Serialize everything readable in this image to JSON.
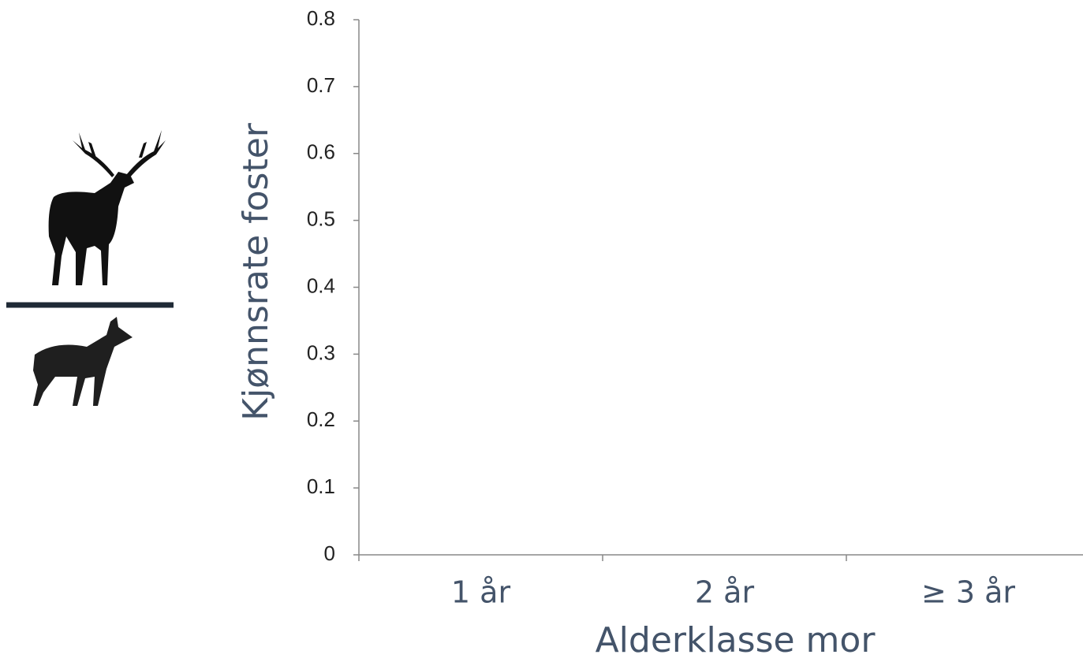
{
  "chart_data": {
    "type": "bar",
    "categories": [
      "1 år",
      "2 år",
      "≥ 3 år"
    ],
    "x_label": "Alderklasse mor",
    "y_label": "Kjønnsrate foster",
    "ylim": [
      0,
      0.8
    ],
    "yticks": [
      0,
      0.1,
      0.2,
      0.3,
      0.4,
      0.5,
      0.6,
      0.7,
      0.8
    ]
  }
}
